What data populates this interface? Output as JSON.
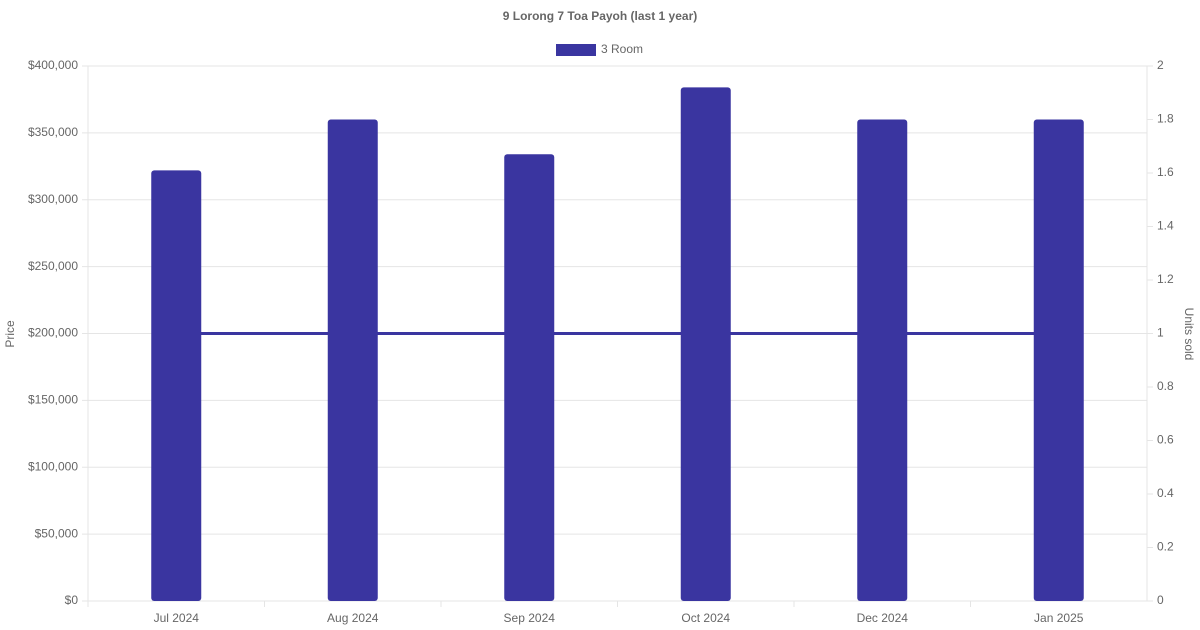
{
  "chart_data": {
    "type": "bar",
    "title": "9 Lorong 7 Toa Payoh (last 1 year)",
    "categories": [
      "Jul 2024",
      "Aug 2024",
      "Sep 2024",
      "Oct 2024",
      "Dec 2024",
      "Jan 2025"
    ],
    "series": [
      {
        "name": "3 Room",
        "color": "#3a35a0",
        "values": [
          322000,
          360000,
          334000,
          384000,
          360000,
          360000
        ]
      },
      {
        "type": "line",
        "axis": "y2",
        "color": "#3a35a0",
        "values": [
          1,
          1,
          1,
          1,
          1,
          1
        ]
      }
    ],
    "y_label": "Price",
    "y2_label": "Units sold",
    "ylim": [
      0,
      400000
    ],
    "yticks": [
      {
        "value": 0,
        "label": "$0"
      },
      {
        "value": 50000,
        "label": "$50,000"
      },
      {
        "value": 100000,
        "label": "$100,000"
      },
      {
        "value": 150000,
        "label": "$150,000"
      },
      {
        "value": 200000,
        "label": "$200,000"
      },
      {
        "value": 250000,
        "label": "$250,000"
      },
      {
        "value": 300000,
        "label": "$300,000"
      },
      {
        "value": 350000,
        "label": "$350,000"
      },
      {
        "value": 400000,
        "label": "$400,000"
      }
    ],
    "y2lim": [
      0,
      2
    ],
    "y2ticks": [
      0,
      0.2,
      0.4,
      0.6,
      0.8,
      1,
      1.2,
      1.4,
      1.6,
      1.8,
      2
    ],
    "grid": true,
    "legend": "top"
  }
}
